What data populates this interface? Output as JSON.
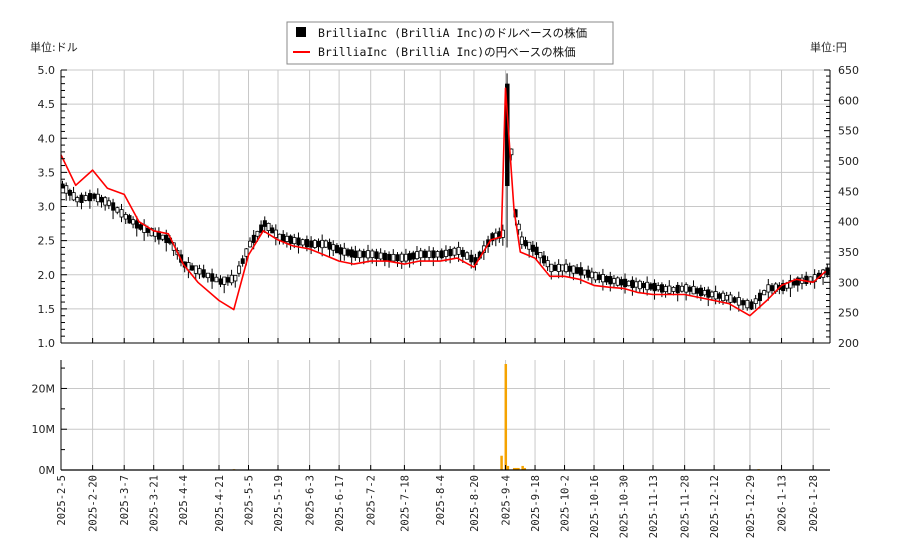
{
  "legend": {
    "items": [
      {
        "label": "BrilliaInc (BrilliA Inc)のドルベースの株価",
        "symbol": "black-square",
        "color": "#000000"
      },
      {
        "label": "BrilliaInc (BrilliA Inc)の円ベースの株価",
        "symbol": "red-line",
        "color": "#ff0000"
      }
    ]
  },
  "axes": {
    "left_unit": "単位:ドル",
    "right_unit": "単位:円",
    "left_ticks": [
      "5.0",
      "4.5",
      "4.0",
      "3.5",
      "3.0",
      "2.5",
      "2.0",
      "1.5",
      "1.0"
    ],
    "right_ticks": [
      "650",
      "600",
      "550",
      "500",
      "450",
      "400",
      "350",
      "300",
      "250",
      "200"
    ],
    "volume_ticks": [
      "20M",
      "10M",
      "0M"
    ],
    "date_ticks": [
      "2025-2-5",
      "2025-2-20",
      "2025-3-7",
      "2025-3-21",
      "2025-4-4",
      "2025-4-21",
      "2025-5-5",
      "2025-5-19",
      "2025-6-3",
      "2025-6-17",
      "2025-7-2",
      "2025-7-18",
      "2025-8-4",
      "2025-8-20",
      "2025-9-4",
      "2025-9-18",
      "2025-10-2",
      "2025-10-16",
      "2025-10-30",
      "2025-11-13",
      "2025-11-28",
      "2025-12-12",
      "2025-12-29",
      "2026-1-13",
      "2026-1-28"
    ]
  },
  "colors": {
    "usd_candles": "#000000",
    "jpy_line": "#ff0000",
    "volume_bars": "#f5a300",
    "grid": "#c8c8c8"
  },
  "chart_data": [
    {
      "type": "line",
      "title": "BrilliaInc (BrilliA Inc) stock price",
      "xlabel": "",
      "ylabel_left": "単位:ドル",
      "ylabel_right": "単位:円",
      "ylim_left": [
        1.0,
        5.0
      ],
      "ylim_right": [
        200,
        650
      ],
      "grid": true,
      "legend_position": "top-center",
      "x": [
        "2025-2-5",
        "2025-2-12",
        "2025-2-20",
        "2025-2-27",
        "2025-3-7",
        "2025-3-14",
        "2025-3-21",
        "2025-3-28",
        "2025-4-4",
        "2025-4-11",
        "2025-4-21",
        "2025-4-28",
        "2025-5-5",
        "2025-5-12",
        "2025-5-19",
        "2025-5-26",
        "2025-6-3",
        "2025-6-10",
        "2025-6-17",
        "2025-6-24",
        "2025-7-2",
        "2025-7-10",
        "2025-7-18",
        "2025-7-25",
        "2025-8-4",
        "2025-8-12",
        "2025-8-20",
        "2025-8-28",
        "2025-9-2",
        "2025-9-4",
        "2025-9-8",
        "2025-9-11",
        "2025-9-18",
        "2025-9-25",
        "2025-10-2",
        "2025-10-9",
        "2025-10-16",
        "2025-10-23",
        "2025-10-30",
        "2025-11-6",
        "2025-11-13",
        "2025-11-20",
        "2025-11-28",
        "2025-12-5",
        "2025-12-12",
        "2025-12-19",
        "2025-12-29",
        "2026-1-6",
        "2026-1-13",
        "2026-1-20",
        "2026-1-28",
        "2026-2-3"
      ],
      "series": [
        {
          "name": "BrilliaInc (BrilliA Inc)のドルベースの株価",
          "axis": "left",
          "style": "candlestick",
          "values": [
            3.3,
            3.1,
            3.15,
            3.05,
            2.85,
            2.7,
            2.6,
            2.5,
            2.15,
            2.05,
            1.9,
            1.95,
            2.45,
            2.75,
            2.55,
            2.5,
            2.45,
            2.45,
            2.35,
            2.3,
            2.3,
            2.25,
            2.25,
            2.3,
            2.3,
            2.35,
            2.2,
            2.55,
            2.6,
            4.7,
            2.9,
            2.5,
            2.35,
            2.1,
            2.1,
            2.05,
            1.98,
            1.92,
            1.88,
            1.85,
            1.82,
            1.78,
            1.8,
            1.75,
            1.7,
            1.65,
            1.55,
            1.8,
            1.82,
            1.9,
            1.95,
            2.05
          ]
        },
        {
          "name": "BrilliaInc (BrilliA Inc)の円ベースの株価",
          "axis": "right",
          "values": [
            510,
            460,
            485,
            455,
            445,
            400,
            385,
            380,
            330,
            300,
            270,
            255,
            345,
            385,
            370,
            360,
            355,
            345,
            335,
            330,
            335,
            335,
            330,
            335,
            335,
            340,
            325,
            370,
            375,
            620,
            420,
            350,
            340,
            310,
            310,
            305,
            295,
            292,
            290,
            283,
            280,
            280,
            280,
            275,
            270,
            265,
            245,
            270,
            295,
            305,
            300,
            318
          ]
        }
      ]
    },
    {
      "type": "bar",
      "title": "Volume",
      "ylim": [
        0,
        26
      ],
      "ylabel": "",
      "y_tick_labels": [
        "0M",
        "10M",
        "20M"
      ],
      "x": [
        "2025-4-28",
        "2025-9-2",
        "2025-9-4",
        "2025-9-5",
        "2025-9-8",
        "2025-9-9",
        "2025-9-10",
        "2025-9-12",
        "2025-9-13",
        "2026-1-2"
      ],
      "values": [
        0.2,
        3.5,
        26.0,
        1.0,
        0.5,
        0.5,
        0.5,
        1.0,
        0.5,
        0.2
      ],
      "unit": "M shares"
    }
  ]
}
